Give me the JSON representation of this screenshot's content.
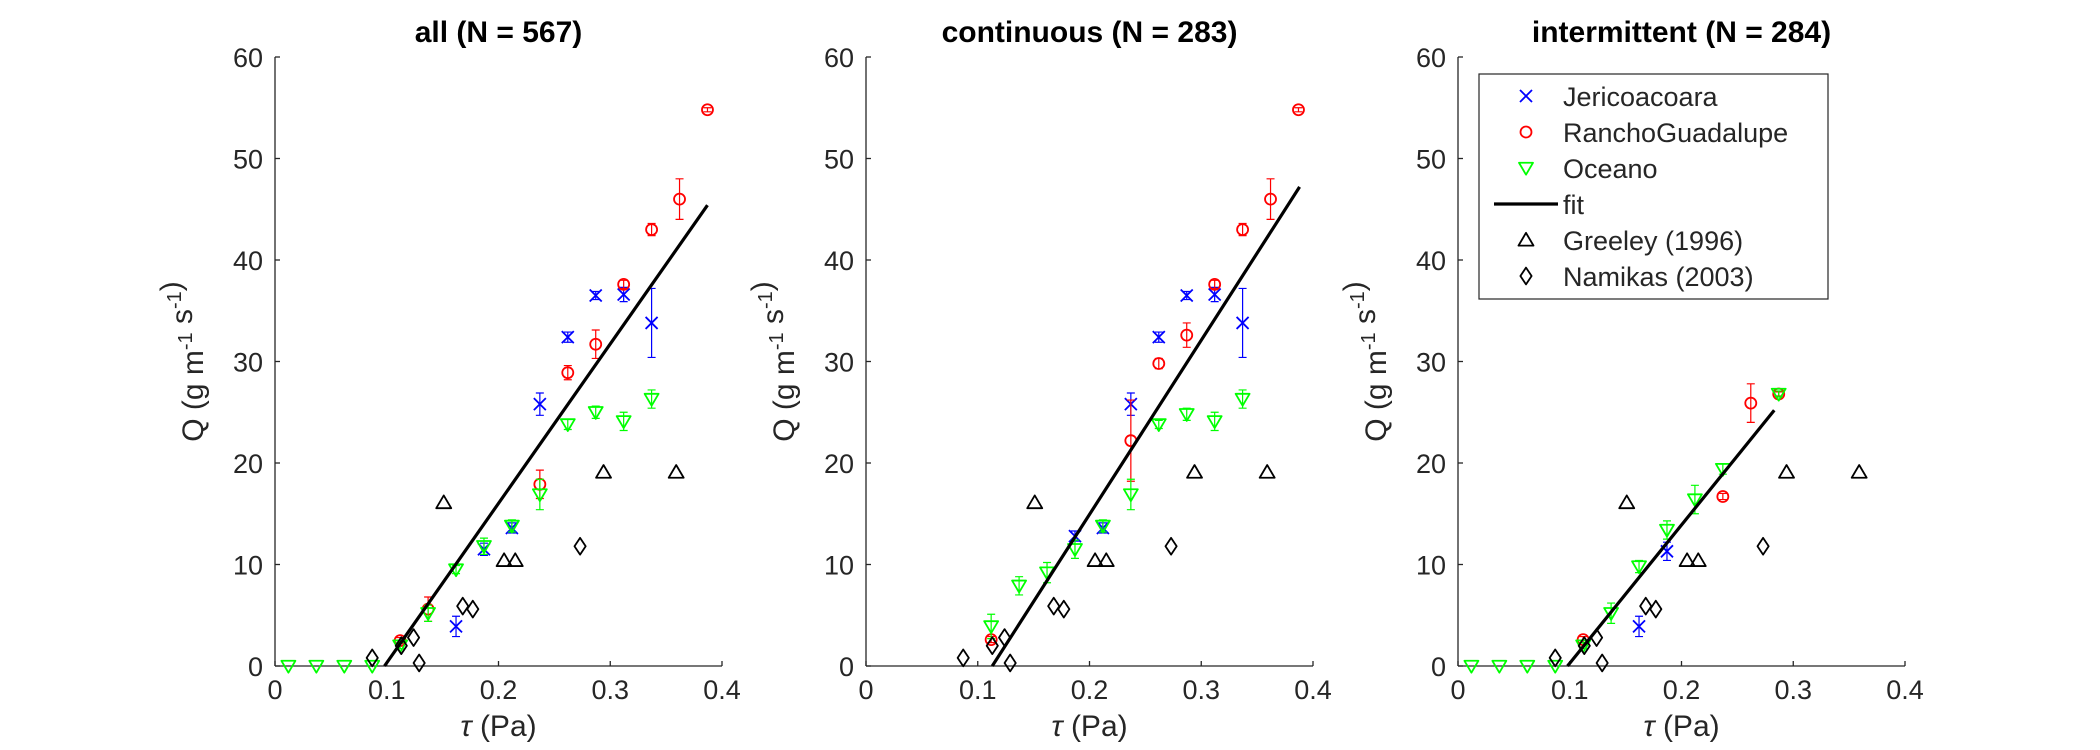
{
  "chart_data": [
    {
      "type": "scatter",
      "title": "all (N = 567)",
      "xlabel": "τ (Pa)",
      "ylabel": "Q (g m-1 s-1)",
      "xlim": [
        0,
        0.4
      ],
      "ylim": [
        0,
        60
      ],
      "xticks": [
        0,
        0.1,
        0.2,
        0.3,
        0.4
      ],
      "xtick_labels": [
        "0",
        "0.1",
        "0.2",
        "0.3",
        "0.4"
      ],
      "yticks": [
        0,
        10,
        20,
        30,
        40,
        50,
        60
      ],
      "ytick_labels": [
        "0",
        "10",
        "20",
        "30",
        "40",
        "50",
        "60"
      ],
      "legend": false,
      "series": [
        {
          "name": "Jericoacoara",
          "marker": "x",
          "color": "#0000ff",
          "x": [
            0.162,
            0.187,
            0.212,
            0.237,
            0.262,
            0.287,
            0.312,
            0.337
          ],
          "y": [
            3.9,
            11.5,
            13.6,
            25.8,
            32.4,
            36.5,
            36.6,
            33.8
          ],
          "err": [
            1.0,
            0.6,
            0.5,
            1.1,
            0.5,
            0.4,
            0.7,
            3.4
          ]
        },
        {
          "name": "RanchoGuadalupe",
          "marker": "o",
          "color": "#ff0000",
          "x": [
            0.112,
            0.137,
            0.237,
            0.262,
            0.287,
            0.312,
            0.337,
            0.362,
            0.387
          ],
          "y": [
            2.5,
            5.6,
            17.9,
            28.9,
            31.7,
            37.6,
            43.0,
            46.0,
            54.8
          ],
          "err": [
            0.3,
            1.2,
            1.4,
            0.7,
            1.4,
            0.4,
            0.6,
            2.0,
            0.2
          ]
        },
        {
          "name": "Oceano",
          "marker": "v",
          "color": "#00ff00",
          "x": [
            0.012,
            0.037,
            0.062,
            0.087,
            0.112,
            0.137,
            0.162,
            0.187,
            0.212,
            0.237,
            0.262,
            0.287,
            0.312,
            0.337
          ],
          "y": [
            0,
            0,
            0,
            0,
            2.0,
            5.2,
            9.5,
            11.8,
            13.8,
            16.9,
            23.8,
            25.0,
            24.1,
            26.3
          ],
          "err": [
            0,
            0,
            0,
            0,
            0.3,
            0.8,
            0.4,
            0.8,
            0.6,
            1.5,
            0.5,
            0.6,
            0.9,
            0.9
          ]
        },
        {
          "name": "fit",
          "type": "line",
          "color": "#000000",
          "x": [
            0.098,
            0.387
          ],
          "y": [
            0,
            45.4
          ]
        },
        {
          "name": "Greeley (1996)",
          "marker": "^",
          "color": "#000000",
          "x": [
            0.151,
            0.205,
            0.215,
            0.294,
            0.359
          ],
          "y": [
            16.1,
            10.4,
            10.4,
            19.1,
            19.1
          ]
        },
        {
          "name": "Namikas (2003)",
          "marker": "d",
          "color": "#000000",
          "x": [
            0.087,
            0.113,
            0.124,
            0.129,
            0.168,
            0.177,
            0.273
          ],
          "y": [
            0.8,
            2.0,
            2.8,
            0.3,
            5.9,
            5.6,
            11.8
          ]
        }
      ]
    },
    {
      "type": "scatter",
      "title": "continuous (N = 283)",
      "xlabel": "τ (Pa)",
      "ylabel": "Q (g m-1 s-1)",
      "xlim": [
        0,
        0.4
      ],
      "ylim": [
        0,
        60
      ],
      "xticks": [
        0,
        0.1,
        0.2,
        0.3,
        0.4
      ],
      "xtick_labels": [
        "0",
        "0.1",
        "0.2",
        "0.3",
        "0.4"
      ],
      "yticks": [
        0,
        10,
        20,
        30,
        40,
        50,
        60
      ],
      "ytick_labels": [
        "0",
        "10",
        "20",
        "30",
        "40",
        "50",
        "60"
      ],
      "legend": false,
      "series": [
        {
          "name": "Jericoacoara",
          "marker": "x",
          "color": "#0000ff",
          "x": [
            0.187,
            0.212,
            0.237,
            0.262,
            0.287,
            0.312,
            0.337
          ],
          "y": [
            12.8,
            13.6,
            25.8,
            32.4,
            36.5,
            36.6,
            33.8
          ],
          "err": [
            0.5,
            0.5,
            1.1,
            0.5,
            0.4,
            0.7,
            3.4
          ]
        },
        {
          "name": "RanchoGuadalupe",
          "marker": "o",
          "color": "#ff0000",
          "x": [
            0.112,
            0.237,
            0.262,
            0.287,
            0.312,
            0.337,
            0.362,
            0.387
          ],
          "y": [
            2.6,
            22.2,
            29.8,
            32.6,
            37.6,
            43.0,
            46.0,
            54.8
          ],
          "err": [
            0.3,
            4.0,
            0.5,
            1.2,
            0.4,
            0.6,
            2.0,
            0.2
          ]
        },
        {
          "name": "Oceano",
          "marker": "v",
          "color": "#00ff00",
          "x": [
            0.112,
            0.137,
            0.162,
            0.187,
            0.212,
            0.237,
            0.262,
            0.287,
            0.312,
            0.337
          ],
          "y": [
            3.9,
            7.9,
            9.2,
            11.5,
            13.8,
            16.9,
            23.8,
            24.8,
            24.1,
            26.3
          ],
          "err": [
            1.2,
            0.9,
            1.0,
            0.9,
            0.6,
            1.5,
            0.4,
            0.6,
            0.9,
            0.9
          ]
        },
        {
          "name": "fit",
          "type": "line",
          "color": "#000000",
          "x": [
            0.113,
            0.388
          ],
          "y": [
            0,
            47.2
          ]
        },
        {
          "name": "Greeley (1996)",
          "marker": "^",
          "color": "#000000",
          "x": [
            0.151,
            0.205,
            0.215,
            0.294,
            0.359
          ],
          "y": [
            16.1,
            10.4,
            10.4,
            19.1,
            19.1
          ]
        },
        {
          "name": "Namikas (2003)",
          "marker": "d",
          "color": "#000000",
          "x": [
            0.087,
            0.113,
            0.124,
            0.129,
            0.168,
            0.177,
            0.273
          ],
          "y": [
            0.8,
            2.0,
            2.8,
            0.3,
            5.9,
            5.6,
            11.8
          ]
        }
      ]
    },
    {
      "type": "scatter",
      "title": "intermittent (N = 284)",
      "xlabel": "τ (Pa)",
      "ylabel": "Q (g m-1 s-1)",
      "xlim": [
        0,
        0.4
      ],
      "ylim": [
        0,
        60
      ],
      "xticks": [
        0,
        0.1,
        0.2,
        0.3,
        0.4
      ],
      "xtick_labels": [
        "0",
        "0.1",
        "0.2",
        "0.3",
        "0.4"
      ],
      "yticks": [
        0,
        10,
        20,
        30,
        40,
        50,
        60
      ],
      "ytick_labels": [
        "0",
        "10",
        "20",
        "30",
        "40",
        "50",
        "60"
      ],
      "legend": true,
      "legend_location": "top-right",
      "series": [
        {
          "name": "Jericoacoara",
          "marker": "x",
          "color": "#0000ff",
          "x": [
            0.162,
            0.187
          ],
          "y": [
            3.9,
            11.3
          ],
          "err": [
            1.0,
            0.9
          ]
        },
        {
          "name": "RanchoGuadalupe",
          "marker": "o",
          "color": "#ff0000",
          "x": [
            0.112,
            0.237,
            0.262,
            0.287
          ],
          "y": [
            2.6,
            16.7,
            25.9,
            26.8
          ],
          "err": [
            0.3,
            0.3,
            1.9,
            0.2
          ]
        },
        {
          "name": "Oceano",
          "marker": "v",
          "color": "#00ff00",
          "x": [
            0.012,
            0.037,
            0.062,
            0.087,
            0.112,
            0.137,
            0.162,
            0.187,
            0.212,
            0.237,
            0.287
          ],
          "y": [
            0,
            0,
            0,
            0,
            2.0,
            5.2,
            9.8,
            13.4,
            16.4,
            19.4,
            26.8
          ],
          "err": [
            0,
            0,
            0,
            0,
            0.3,
            1.0,
            0.6,
            0.9,
            1.4,
            0.5,
            0.3
          ]
        },
        {
          "name": "fit",
          "type": "line",
          "color": "#000000",
          "x": [
            0.098,
            0.283
          ],
          "y": [
            0,
            25.2
          ]
        },
        {
          "name": "Greeley (1996)",
          "marker": "^",
          "color": "#000000",
          "x": [
            0.151,
            0.205,
            0.215,
            0.294,
            0.359
          ],
          "y": [
            16.1,
            10.4,
            10.4,
            19.1,
            19.1
          ]
        },
        {
          "name": "Namikas (2003)",
          "marker": "d",
          "color": "#000000",
          "x": [
            0.087,
            0.113,
            0.124,
            0.129,
            0.168,
            0.177,
            0.273
          ],
          "y": [
            0.8,
            2.0,
            2.8,
            0.3,
            5.9,
            5.6,
            11.8
          ]
        }
      ]
    }
  ]
}
